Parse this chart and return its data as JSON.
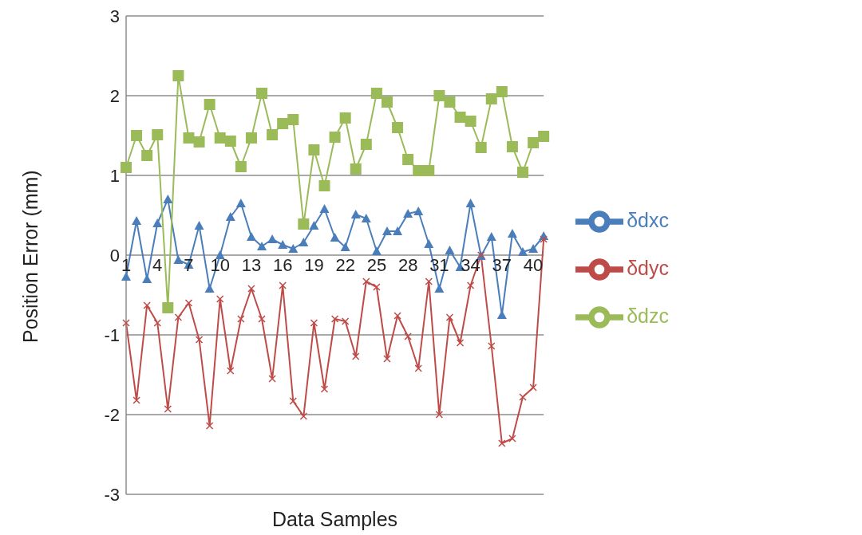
{
  "chart_data": {
    "type": "line",
    "xlabel": "Data Samples",
    "ylabel": "Position Error (mm)",
    "categories": [
      "1",
      null,
      null,
      "4",
      null,
      null,
      "7",
      null,
      null,
      "10",
      null,
      null,
      "13",
      null,
      null,
      "16",
      null,
      null,
      "19",
      null,
      null,
      "22",
      null,
      null,
      "25",
      null,
      null,
      "28",
      null,
      null,
      "31",
      null,
      null,
      "34",
      null,
      null,
      "37",
      null,
      null,
      "40",
      null
    ],
    "series": [
      {
        "name": "δdxc",
        "color": "#4a7ebb",
        "marker": "triangle",
        "values": [
          -0.27,
          0.43,
          -0.3,
          0.4,
          0.7,
          -0.06,
          -0.12,
          0.37,
          -0.42,
          0.0,
          0.48,
          0.65,
          0.23,
          0.11,
          0.2,
          0.13,
          0.08,
          0.16,
          0.37,
          0.58,
          0.22,
          0.1,
          0.51,
          0.46,
          0.05,
          0.3,
          0.3,
          0.52,
          0.55,
          0.14,
          -0.42,
          0.06,
          -0.15,
          0.65,
          -0.01,
          0.23,
          -0.75,
          0.27,
          0.04,
          0.08,
          0.24
        ]
      },
      {
        "name": "δdyc",
        "color": "#be4b48",
        "marker": "cross",
        "values": [
          -0.85,
          -1.82,
          -0.63,
          -0.85,
          -1.93,
          -0.78,
          -0.6,
          -1.06,
          -2.14,
          -0.55,
          -1.45,
          -0.8,
          -0.42,
          -0.8,
          -1.55,
          -0.38,
          -1.83,
          -2.02,
          -0.85,
          -1.68,
          -0.8,
          -0.83,
          -1.27,
          -0.33,
          -0.4,
          -1.3,
          -0.76,
          -1.02,
          -1.42,
          -0.33,
          -2.0,
          -0.78,
          -1.1,
          -0.38,
          0.0,
          -1.14,
          -2.36,
          -2.3,
          -1.78,
          -1.66,
          0.2
        ]
      },
      {
        "name": "δdzc",
        "color": "#9bbb59",
        "marker": "square",
        "values": [
          1.1,
          1.5,
          1.25,
          1.51,
          -0.66,
          2.25,
          1.47,
          1.42,
          1.89,
          1.47,
          1.43,
          1.11,
          1.47,
          2.03,
          1.51,
          1.65,
          1.7,
          0.39,
          1.32,
          0.87,
          1.48,
          1.72,
          1.08,
          1.39,
          2.03,
          1.92,
          1.6,
          1.2,
          1.06,
          1.06,
          2.0,
          1.92,
          1.73,
          1.68,
          1.35,
          1.96,
          2.05,
          1.36,
          1.04,
          1.41,
          1.49
        ]
      }
    ],
    "ylim": [
      -3,
      3
    ],
    "yticks": [
      -3,
      -2,
      -1,
      0,
      1,
      2,
      3
    ],
    "grid": "y",
    "legend": "right"
  }
}
